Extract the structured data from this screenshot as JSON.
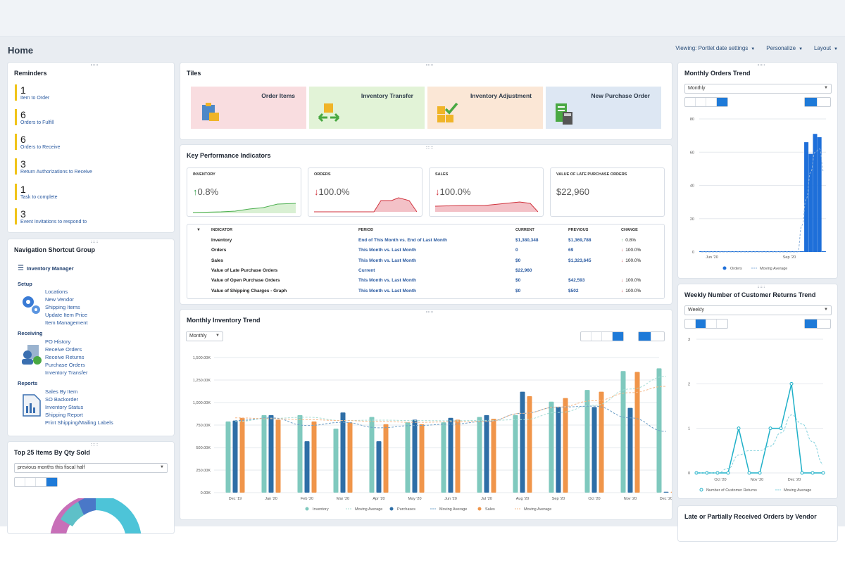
{
  "page": {
    "title": "Home"
  },
  "toplinks": [
    {
      "label": "Viewing: Portlet date settings"
    },
    {
      "label": "Personalize"
    },
    {
      "label": "Layout"
    }
  ],
  "reminders": {
    "title": "Reminders",
    "items": [
      {
        "count": "1",
        "label": "Item to Order"
      },
      {
        "count": "6",
        "label": "Orders to Fulfill"
      },
      {
        "count": "6",
        "label": "Orders to Receive"
      },
      {
        "count": "3",
        "label": "Return Authorizations to Receive"
      },
      {
        "count": "1",
        "label": "Task to complete"
      },
      {
        "count": "3",
        "label": "Event Invitations to respond to"
      }
    ]
  },
  "nav": {
    "title": "Navigation Shortcut Group",
    "menu_label": "Inventory Manager",
    "setup": {
      "title": "Setup",
      "links": [
        "Locations",
        "New Vendor",
        "Shipping Items",
        "Update Item Price",
        "Item Management"
      ]
    },
    "receiving": {
      "title": "Receiving",
      "links": [
        "PO History",
        "Receive Orders",
        "Receive Returns",
        "Purchase Orders",
        "Inventory Transfer"
      ]
    },
    "reports": {
      "title": "Reports",
      "links": [
        "Sales By Item",
        "SO Backorder",
        "Inventory Status",
        "Shipping Report",
        "Print Shipping/Mailing Labels"
      ]
    }
  },
  "top25": {
    "title": "Top 25 Items By Qty Sold",
    "period": "previous months this fiscal half"
  },
  "tiles": {
    "title": "Tiles",
    "items": [
      {
        "label": "Order Items",
        "bg": "#f9dde0"
      },
      {
        "label": "Inventory Transfer",
        "bg": "#e2f3d7"
      },
      {
        "label": "Inventory Adjustment",
        "bg": "#fbe7d6"
      },
      {
        "label": "New Purchase Order",
        "bg": "#dde7f3"
      }
    ]
  },
  "kpi": {
    "title": "Key Performance Indicators",
    "cards": [
      {
        "title": "INVENTORY",
        "value": "0.8%",
        "dir": "up",
        "arrow": "↑"
      },
      {
        "title": "ORDERS",
        "value": "100.0%",
        "dir": "down",
        "arrow": "↓"
      },
      {
        "title": "SALES",
        "value": "100.0%",
        "dir": "down",
        "arrow": "↓"
      },
      {
        "title": "VALUE OF LATE PURCHASE ORDERS",
        "value": "$22,960",
        "dir": "none",
        "arrow": ""
      }
    ],
    "headers": {
      "indicator": "INDICATOR",
      "period": "PERIOD",
      "current": "CURRENT",
      "previous": "PREVIOUS",
      "change": "CHANGE"
    },
    "rows": [
      {
        "indicator": "Inventory",
        "period": "End of This Month vs. End of Last Month",
        "current": "$1,380,348",
        "previous": "$1,369,788",
        "change": "0.8%",
        "arrow": "↑"
      },
      {
        "indicator": "Orders",
        "period": "This Month vs. Last Month",
        "current": "0",
        "previous": "69",
        "change": "100.0%",
        "arrow": "↓"
      },
      {
        "indicator": "Sales",
        "period": "This Month vs. Last Month",
        "current": "$0",
        "previous": "$1,323,645",
        "change": "100.0%",
        "arrow": "↓"
      },
      {
        "indicator": "Value of Late Purchase Orders",
        "period": "Current",
        "current": "$22,960",
        "previous": "",
        "change": "",
        "arrow": ""
      },
      {
        "indicator": "Value of Open Purchase Orders",
        "period": "This Month vs. Last Month",
        "current": "$0",
        "previous": "$42,593",
        "change": "100.0%",
        "arrow": "↓"
      },
      {
        "indicator": "Value of Shipping Charges - Graph",
        "period": "This Month vs. Last Month",
        "current": "$0",
        "previous": "$502",
        "change": "100.0%",
        "arrow": "↓"
      }
    ]
  },
  "inv_trend": {
    "title": "Monthly Inventory Trend",
    "period": "Monthly"
  },
  "orders_trend": {
    "title": "Monthly Orders Trend",
    "period": "Monthly"
  },
  "returns_trend": {
    "title": "Weekly Number of Customer Returns Trend",
    "period": "Weekly"
  },
  "late_orders": {
    "title": "Late or Partially Received Orders by Vendor"
  },
  "chart_data": [
    {
      "type": "bar",
      "title": "Monthly Inventory Trend",
      "categories": [
        "Dec '19",
        "Jan '20",
        "Feb '20",
        "Mar '20",
        "Apr '20",
        "May '20",
        "Jun '20",
        "Jul '20",
        "Aug '20",
        "Sep '20",
        "Oct '20",
        "Nov '20",
        "Dec '20"
      ],
      "tick_labels": [
        "Dec '19",
        "Jan '20",
        "Feb '20",
        "Mar '20",
        "Apr '20",
        "May '20",
        "Jun '20",
        "Jul '20",
        "Aug '20",
        "Sep '20",
        "Oct '20",
        "Nov '20",
        "Dec '20"
      ],
      "y_ticks": [
        "0.00K",
        "250.00K",
        "500.00K",
        "750.00K",
        "1,000.00K",
        "1,250.00K",
        "1,500.00K"
      ],
      "ylim": [
        0,
        1500
      ],
      "series": [
        {
          "name": "Inventory",
          "color": "#7fc9be",
          "values": [
            790,
            860,
            860,
            710,
            840,
            780,
            780,
            840,
            860,
            1010,
            1140,
            1350,
            1380
          ]
        },
        {
          "name": "Moving Average",
          "color": "#a8ddd6",
          "values": [
            790,
            825,
            837,
            800,
            805,
            800,
            798,
            802,
            810,
            890,
            970,
            1150,
            1290
          ]
        },
        {
          "name": "Purchases",
          "color": "#2e6ea6",
          "values": [
            800,
            860,
            570,
            890,
            570,
            810,
            830,
            860,
            1120,
            950,
            950,
            940,
            10
          ]
        },
        {
          "name": "Moving Average",
          "color": "#6fa0c8",
          "values": [
            800,
            830,
            745,
            780,
            720,
            745,
            760,
            790,
            880,
            950,
            960,
            830,
            680
          ]
        },
        {
          "name": "Sales",
          "color": "#f0954a",
          "values": [
            830,
            810,
            790,
            780,
            760,
            760,
            810,
            820,
            1070,
            1050,
            1120,
            1340,
            10
          ]
        },
        {
          "name": "Moving Average",
          "color": "#f5b98a",
          "values": [
            830,
            820,
            810,
            800,
            790,
            780,
            785,
            790,
            880,
            950,
            1020,
            1110,
            1180
          ]
        }
      ],
      "legend": "bottom"
    },
    {
      "type": "bar",
      "title": "Monthly Orders Trend",
      "tick_labels": [
        "Jun '20",
        "Sep '20"
      ],
      "y_ticks": [
        "0",
        "20",
        "40",
        "60",
        "80"
      ],
      "ylim": [
        0,
        80
      ],
      "series": [
        {
          "name": "Orders",
          "color": "#1e6fd9",
          "values": [
            0,
            0,
            0,
            0,
            0,
            0,
            0,
            0,
            0,
            0,
            0,
            0,
            0,
            0,
            0,
            0,
            0,
            0,
            0,
            0,
            0,
            0,
            0,
            0,
            66,
            59,
            71,
            69,
            0
          ]
        },
        {
          "name": "Moving Average",
          "color": "#8ab0dc",
          "values": [
            0,
            0,
            0,
            0,
            0,
            0,
            0,
            0,
            0,
            0,
            0,
            0,
            0,
            0,
            0,
            0,
            0,
            0,
            0,
            0,
            0,
            0,
            0,
            16,
            32,
            48,
            60,
            62,
            48
          ]
        }
      ],
      "legend": "bottom"
    },
    {
      "type": "line",
      "title": "Weekly Number of Customer Returns Trend",
      "tick_labels": [
        "Oct '20",
        "Nov '20",
        "Dec '20"
      ],
      "y_ticks": [
        "0",
        "1",
        "2",
        "3"
      ],
      "ylim": [
        0,
        3
      ],
      "series": [
        {
          "name": "Number of Customer Returns",
          "color": "#1eb0c8",
          "values": [
            0,
            0,
            0,
            0,
            1,
            0,
            0,
            1,
            1,
            2,
            0,
            0,
            0
          ]
        },
        {
          "name": "Moving Average",
          "color": "#7fd0dc",
          "values": [
            0,
            0,
            0,
            0.1,
            0.4,
            0.5,
            0.5,
            0.6,
            0.9,
            1.3,
            1.1,
            0.7,
            0.2
          ]
        }
      ],
      "legend": "bottom"
    }
  ]
}
